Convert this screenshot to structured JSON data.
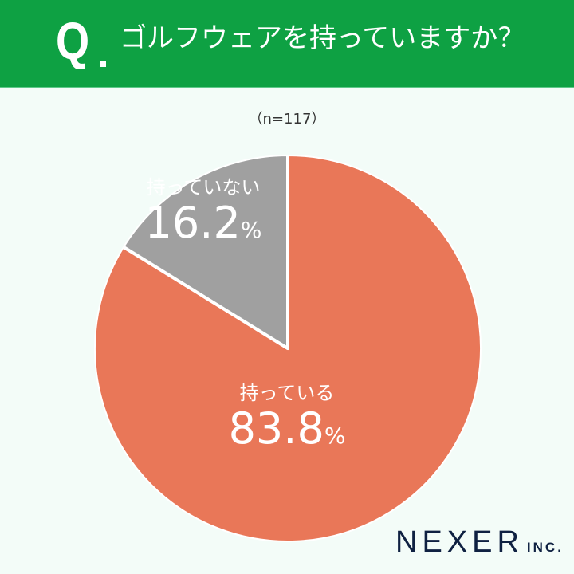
{
  "header": {
    "q_label": "Q",
    "title": "ゴルフウェアを持っていますか？",
    "background_color": "#0ea143"
  },
  "sample_size": "（n=117）",
  "chart_data": {
    "type": "pie",
    "title": "ゴルフウェアを持っていますか？",
    "subtitle": "（n=117）",
    "categories": [
      "持っている",
      "持っていない"
    ],
    "values": [
      83.8,
      16.2
    ],
    "unit": "%",
    "colors": [
      "#e97758",
      "#a0a0a0"
    ],
    "start_angle": "12 o'clock",
    "direction": "clockwise",
    "legend": "none (inline labels)"
  },
  "labels": {
    "yes": {
      "name": "持っている",
      "value": "83.8",
      "unit": "%"
    },
    "no": {
      "name": "持っていない",
      "value": "16.2",
      "unit": "%"
    }
  },
  "logo": {
    "main": "NEXER",
    "suffix": "INC."
  }
}
